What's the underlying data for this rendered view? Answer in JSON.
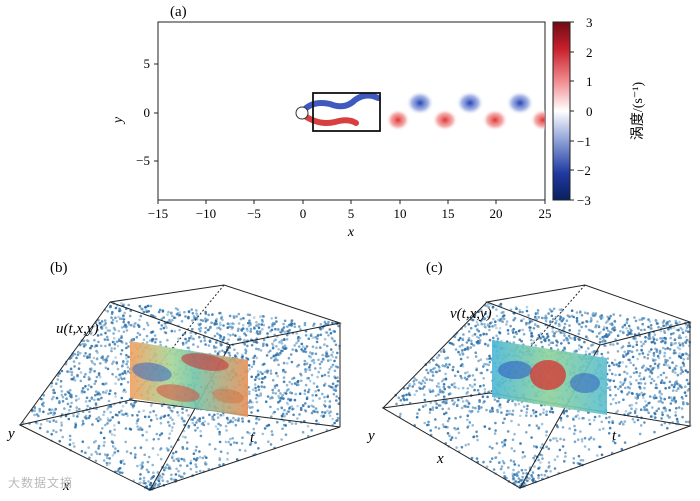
{
  "panels": {
    "a": {
      "label": "(a)",
      "xlabel": "x",
      "ylabel": "y",
      "xticks": [
        "−15",
        "−10",
        "−5",
        "0",
        "5",
        "10",
        "15",
        "20",
        "25"
      ],
      "yticks": [
        "5",
        "0",
        "−5"
      ],
      "colorbar": {
        "ticks": [
          "3",
          "2",
          "1",
          "0",
          "−1",
          "−2",
          "−3"
        ],
        "label": "涡度/(s⁻¹)",
        "colors": {
          "high": "#7a0a13",
          "mid": "#ffffff",
          "low": "#08205e"
        }
      }
    },
    "b": {
      "label": "(b)",
      "field": "u(t,x,y)",
      "axes": {
        "y": "y",
        "t": "t",
        "x": "x"
      }
    },
    "c": {
      "label": "(c)",
      "field": "v(t,x,y)",
      "axes": {
        "y": "y",
        "t": "t",
        "x": "x"
      }
    }
  },
  "watermark": "大数据文摘"
}
